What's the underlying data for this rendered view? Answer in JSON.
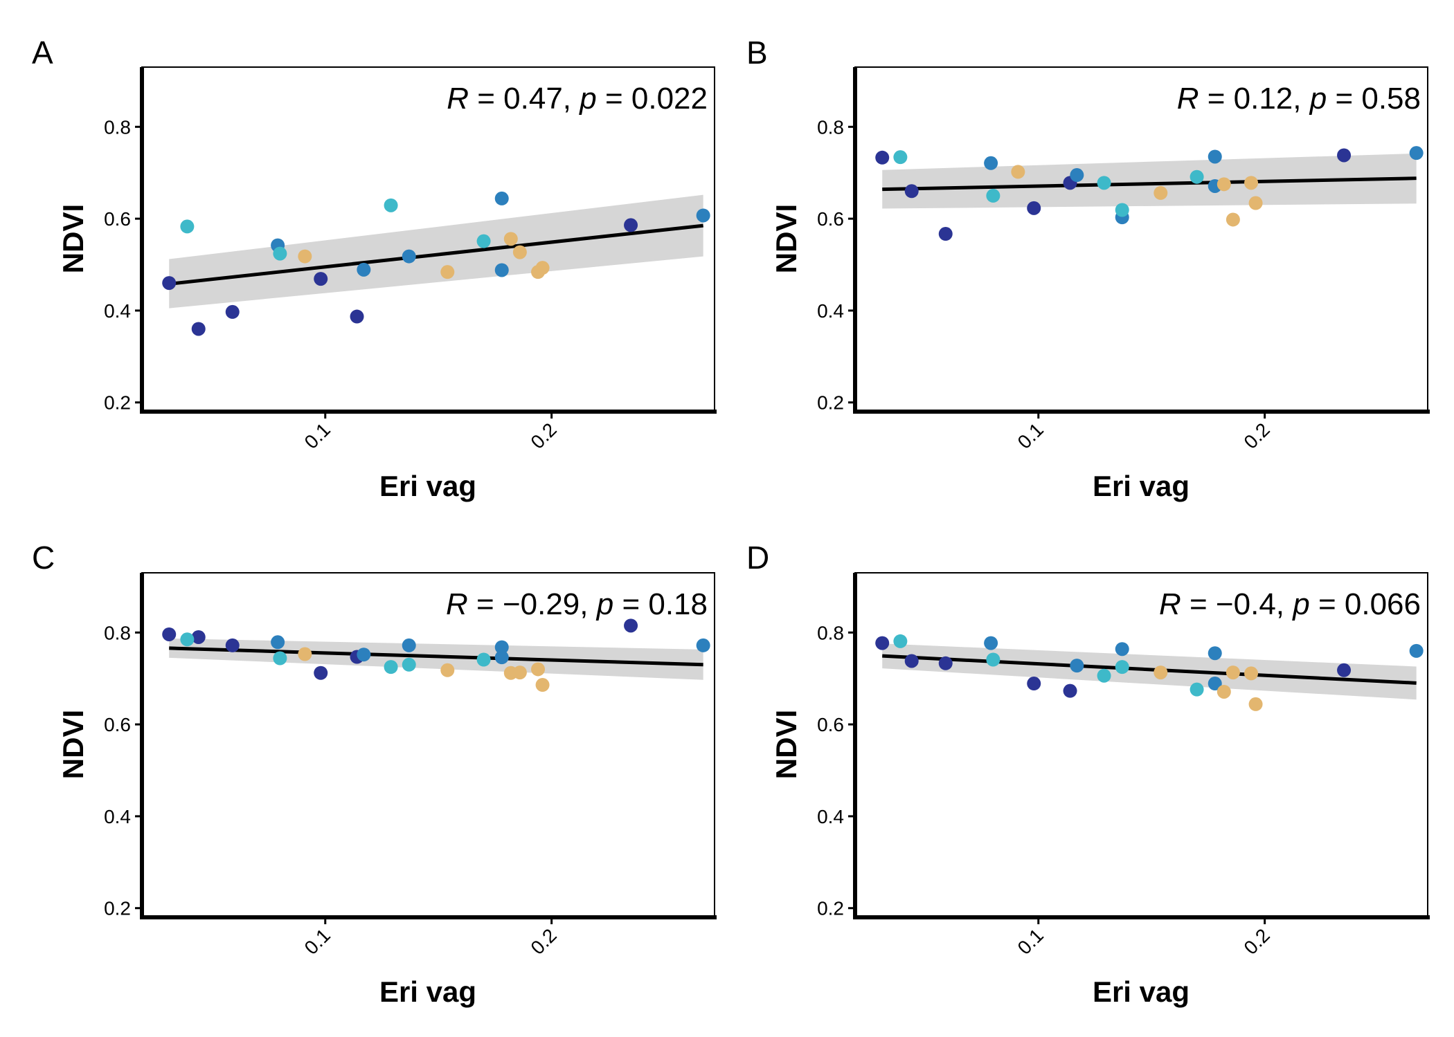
{
  "colors": {
    "group_1": "#2b3494",
    "group_2": "#2c80bd",
    "group_3": "#3eb9c9",
    "group_4": "#e3b66f",
    "fit_line": "#000000",
    "confidence_band": "#d6d6d6"
  },
  "chart_data": [
    {
      "panel": "A",
      "type": "scatter",
      "xlabel": "Eri vag",
      "ylabel": "NDVI",
      "x_ticks": [
        "0.1",
        "0.2"
      ],
      "y_ticks": [
        "0.2",
        "0.4",
        "0.6",
        "0.8"
      ],
      "xlim": [
        0.019,
        0.272
      ],
      "ylim": [
        0.18,
        0.93
      ],
      "grid": false,
      "legend": "none",
      "annotation": {
        "r_label": "R",
        "r_value": " = 0.47, ",
        "p_label": "p",
        "p_value": " = 0.022"
      },
      "fit": {
        "x": [
          0.031,
          0.267
        ],
        "y": [
          0.458,
          0.585
        ],
        "ci_lo": [
          0.405,
          0.518
        ],
        "ci_hi": [
          0.512,
          0.652
        ]
      },
      "series": [
        {
          "group": 1,
          "points": [
            [
              0.031,
              0.46
            ],
            [
              0.044,
              0.36
            ],
            [
              0.059,
              0.397
            ],
            [
              0.098,
              0.469
            ],
            [
              0.114,
              0.387
            ],
            [
              0.235,
              0.586
            ]
          ]
        },
        {
          "group": 2,
          "points": [
            [
              0.079,
              0.542
            ],
            [
              0.117,
              0.489
            ],
            [
              0.137,
              0.518
            ],
            [
              0.178,
              0.644
            ],
            [
              0.178,
              0.488
            ],
            [
              0.267,
              0.607
            ]
          ]
        },
        {
          "group": 3,
          "points": [
            [
              0.039,
              0.583
            ],
            [
              0.08,
              0.524
            ],
            [
              0.129,
              0.629
            ],
            [
              0.17,
              0.551
            ]
          ]
        },
        {
          "group": 4,
          "points": [
            [
              0.091,
              0.518
            ],
            [
              0.154,
              0.484
            ],
            [
              0.182,
              0.556
            ],
            [
              0.186,
              0.527
            ],
            [
              0.194,
              0.484
            ],
            [
              0.196,
              0.493
            ]
          ]
        }
      ]
    },
    {
      "panel": "B",
      "type": "scatter",
      "xlabel": "Eri vag",
      "ylabel": "NDVI",
      "x_ticks": [
        "0.1",
        "0.2"
      ],
      "y_ticks": [
        "0.2",
        "0.4",
        "0.6",
        "0.8"
      ],
      "xlim": [
        0.019,
        0.272
      ],
      "ylim": [
        0.18,
        0.93
      ],
      "grid": false,
      "legend": "none",
      "annotation": {
        "r_label": "R",
        "r_value": " = 0.12, ",
        "p_label": "p",
        "p_value": " = 0.58"
      },
      "fit": {
        "x": [
          0.031,
          0.267
        ],
        "y": [
          0.664,
          0.688
        ],
        "ci_lo": [
          0.622,
          0.633
        ],
        "ci_hi": [
          0.706,
          0.742
        ]
      },
      "series": [
        {
          "group": 1,
          "points": [
            [
              0.031,
              0.733
            ],
            [
              0.044,
              0.66
            ],
            [
              0.059,
              0.567
            ],
            [
              0.098,
              0.623
            ],
            [
              0.114,
              0.678
            ],
            [
              0.235,
              0.738
            ]
          ]
        },
        {
          "group": 2,
          "points": [
            [
              0.079,
              0.721
            ],
            [
              0.117,
              0.695
            ],
            [
              0.137,
              0.603
            ],
            [
              0.178,
              0.735
            ],
            [
              0.178,
              0.671
            ],
            [
              0.267,
              0.743
            ]
          ]
        },
        {
          "group": 3,
          "points": [
            [
              0.039,
              0.734
            ],
            [
              0.08,
              0.65
            ],
            [
              0.129,
              0.678
            ],
            [
              0.137,
              0.619
            ],
            [
              0.17,
              0.691
            ]
          ]
        },
        {
          "group": 4,
          "points": [
            [
              0.091,
              0.702
            ],
            [
              0.154,
              0.656
            ],
            [
              0.182,
              0.675
            ],
            [
              0.186,
              0.598
            ],
            [
              0.194,
              0.678
            ],
            [
              0.196,
              0.634
            ]
          ]
        }
      ]
    },
    {
      "panel": "C",
      "type": "scatter",
      "xlabel": "Eri vag",
      "ylabel": "NDVI",
      "x_ticks": [
        "0.1",
        "0.2"
      ],
      "y_ticks": [
        "0.2",
        "0.4",
        "0.6",
        "0.8"
      ],
      "xlim": [
        0.019,
        0.272
      ],
      "ylim": [
        0.18,
        0.93
      ],
      "grid": false,
      "legend": "none",
      "annotation": {
        "r_label": "R",
        "r_value": " = −0.29, ",
        "p_label": "p",
        "p_value": " = 0.18"
      },
      "fit": {
        "x": [
          0.031,
          0.267
        ],
        "y": [
          0.766,
          0.73
        ],
        "ci_lo": [
          0.745,
          0.697
        ],
        "ci_hi": [
          0.787,
          0.763
        ]
      },
      "series": [
        {
          "group": 1,
          "points": [
            [
              0.031,
              0.796
            ],
            [
              0.044,
              0.79
            ],
            [
              0.059,
              0.772
            ],
            [
              0.098,
              0.712
            ],
            [
              0.114,
              0.747
            ],
            [
              0.235,
              0.815
            ]
          ]
        },
        {
          "group": 2,
          "points": [
            [
              0.079,
              0.779
            ],
            [
              0.117,
              0.752
            ],
            [
              0.137,
              0.772
            ],
            [
              0.178,
              0.768
            ],
            [
              0.178,
              0.746
            ],
            [
              0.267,
              0.772
            ]
          ]
        },
        {
          "group": 3,
          "points": [
            [
              0.039,
              0.785
            ],
            [
              0.08,
              0.744
            ],
            [
              0.129,
              0.725
            ],
            [
              0.137,
              0.73
            ],
            [
              0.17,
              0.741
            ]
          ]
        },
        {
          "group": 4,
          "points": [
            [
              0.091,
              0.753
            ],
            [
              0.154,
              0.718
            ],
            [
              0.182,
              0.712
            ],
            [
              0.186,
              0.713
            ],
            [
              0.194,
              0.72
            ],
            [
              0.196,
              0.686
            ]
          ]
        }
      ]
    },
    {
      "panel": "D",
      "type": "scatter",
      "xlabel": "Eri vag",
      "ylabel": "NDVI",
      "x_ticks": [
        "0.1",
        "0.2"
      ],
      "y_ticks": [
        "0.2",
        "0.4",
        "0.6",
        "0.8"
      ],
      "xlim": [
        0.019,
        0.272
      ],
      "ylim": [
        0.18,
        0.93
      ],
      "grid": false,
      "legend": "none",
      "annotation": {
        "r_label": "R",
        "r_value": " = −0.4, ",
        "p_label": "p",
        "p_value": " = 0.066"
      },
      "fit": {
        "x": [
          0.031,
          0.267
        ],
        "y": [
          0.749,
          0.69
        ],
        "ci_lo": [
          0.722,
          0.654
        ],
        "ci_hi": [
          0.776,
          0.726
        ]
      },
      "series": [
        {
          "group": 1,
          "points": [
            [
              0.031,
              0.777
            ],
            [
              0.044,
              0.738
            ],
            [
              0.059,
              0.733
            ],
            [
              0.098,
              0.689
            ],
            [
              0.114,
              0.673
            ],
            [
              0.235,
              0.718
            ]
          ]
        },
        {
          "group": 2,
          "points": [
            [
              0.079,
              0.777
            ],
            [
              0.117,
              0.728
            ],
            [
              0.137,
              0.764
            ],
            [
              0.178,
              0.755
            ],
            [
              0.178,
              0.689
            ],
            [
              0.267,
              0.76
            ]
          ]
        },
        {
          "group": 3,
          "points": [
            [
              0.039,
              0.781
            ],
            [
              0.08,
              0.741
            ],
            [
              0.129,
              0.706
            ],
            [
              0.137,
              0.725
            ],
            [
              0.17,
              0.676
            ]
          ]
        },
        {
          "group": 4,
          "points": [
            [
              0.154,
              0.713
            ],
            [
              0.182,
              0.671
            ],
            [
              0.186,
              0.713
            ],
            [
              0.194,
              0.711
            ],
            [
              0.196,
              0.644
            ]
          ]
        }
      ]
    }
  ]
}
